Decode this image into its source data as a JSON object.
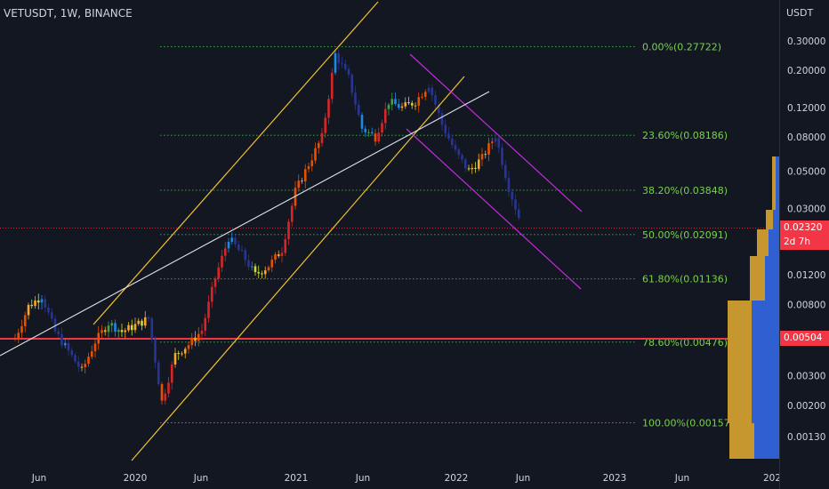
{
  "symbol": "VETUSDT, 1W, BINANCE",
  "axis_unit": "USDT",
  "current_price": "0.02320",
  "countdown": "2d 7h",
  "support_price": "0.00504",
  "colors": {
    "background": "#131722",
    "fib_line": "#4caf50",
    "fib_label": "#7ad04d",
    "support": "#f23645",
    "channel_up": "#f0c22b",
    "channel_down": "#c42bdb",
    "trend": "#e0e3eb",
    "vp_gold": "#c7972f",
    "vp_blue": "#2f5fd0"
  },
  "chart_data": {
    "type": "candlestick",
    "y_scale": "log",
    "y_ticks": [
      "0.30000",
      "0.20000",
      "0.12000",
      "0.08000",
      "0.05000",
      "0.03000",
      "0.01200",
      "0.00800",
      "0.00300",
      "0.00200",
      "0.00130"
    ],
    "x_ticks": [
      "Jun",
      "2020",
      "Jun",
      "2021",
      "Jun",
      "2022",
      "Jun",
      "2023",
      "Jun",
      "202"
    ],
    "fib_levels": [
      {
        "label": "0.00%(0.27722)",
        "value": 0.27722
      },
      {
        "label": "23.60%(0.08186)",
        "value": 0.08186
      },
      {
        "label": "38.20%(0.03848)",
        "value": 0.03848
      },
      {
        "label": "50.00%(0.02091)",
        "value": 0.02091
      },
      {
        "label": "61.80%(0.01136)",
        "value": 0.01136
      },
      {
        "label": "78.60%(0.00476)",
        "value": 0.00476
      },
      {
        "label": "100.00%(0.00157)",
        "value": 0.00157
      }
    ],
    "support_level": 0.00504,
    "last_price": 0.0232,
    "price_path": [
      [
        "2019-04",
        0.005
      ],
      [
        "2019-05",
        0.0078
      ],
      [
        "2019-06",
        0.009
      ],
      [
        "2019-07",
        0.0055
      ],
      [
        "2019-08",
        0.0042
      ],
      [
        "2019-09",
        0.0032
      ],
      [
        "2019-10",
        0.0048
      ],
      [
        "2019-11",
        0.0062
      ],
      [
        "2019-12",
        0.0055
      ],
      [
        "2020-01",
        0.006
      ],
      [
        "2020-02",
        0.0066
      ],
      [
        "2020-03",
        0.0021
      ],
      [
        "2020-04",
        0.004
      ],
      [
        "2020-05",
        0.0046
      ],
      [
        "2020-06",
        0.0056
      ],
      [
        "2020-07",
        0.0115
      ],
      [
        "2020-08",
        0.02
      ],
      [
        "2020-09",
        0.016
      ],
      [
        "2020-10",
        0.012
      ],
      [
        "2020-11",
        0.0136
      ],
      [
        "2020-12",
        0.017
      ],
      [
        "2021-01",
        0.038
      ],
      [
        "2021-02",
        0.055
      ],
      [
        "2021-03",
        0.08
      ],
      [
        "2021-04",
        0.25
      ],
      [
        "2021-05",
        0.18
      ],
      [
        "2021-06",
        0.09
      ],
      [
        "2021-07",
        0.08
      ],
      [
        "2021-08",
        0.13
      ],
      [
        "2021-09",
        0.12
      ],
      [
        "2021-10",
        0.13
      ],
      [
        "2021-11",
        0.165
      ],
      [
        "2021-12",
        0.095
      ],
      [
        "2022-01",
        0.065
      ],
      [
        "2022-02",
        0.05
      ],
      [
        "2022-03",
        0.06
      ],
      [
        "2022-04",
        0.082
      ],
      [
        "2022-05",
        0.04
      ],
      [
        "2022-06",
        0.0232
      ]
    ]
  }
}
